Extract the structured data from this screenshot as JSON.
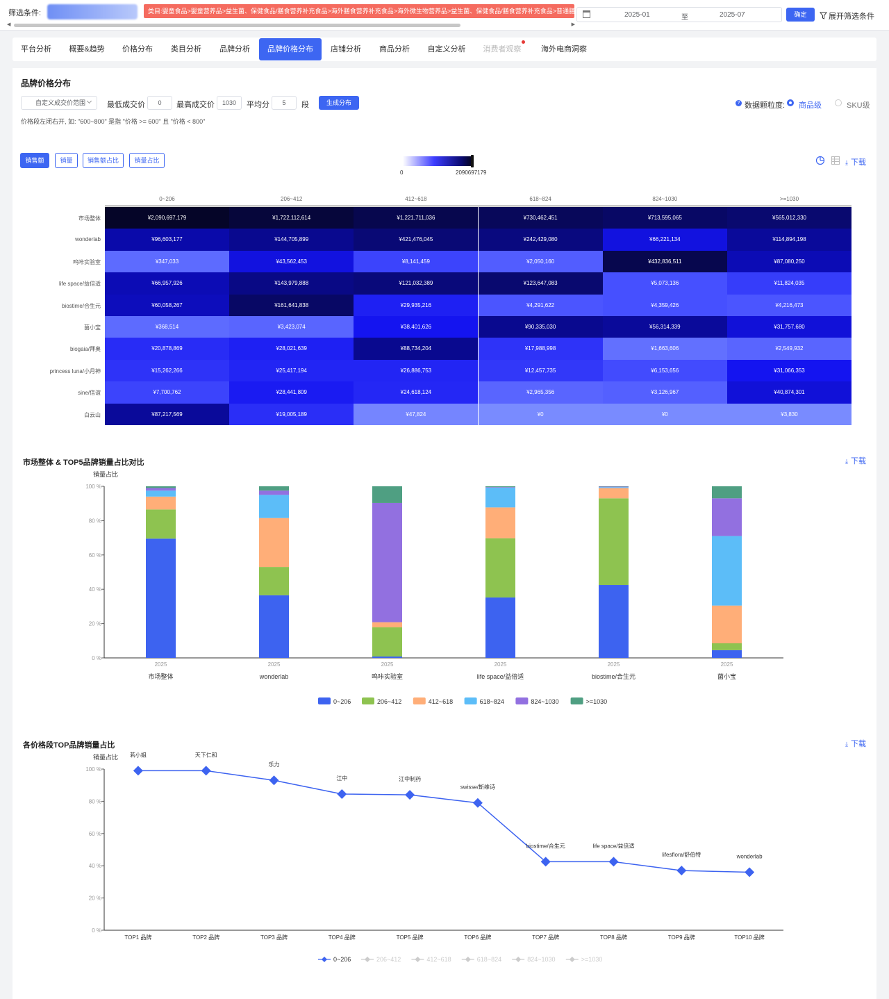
{
  "topbar": {
    "filter_label": "筛选条件:",
    "category_path": "类目:婴童食品>婴童营养品>益生菌、保健食品/膳食营养补充食品>海外膳食营养补充食品>海外微生物营养品>益生菌、保健食品/膳食营养补充食品>普通膳食营养",
    "date_start": "2025-01",
    "date_sep": "至",
    "date_end": "2025-07",
    "ok_label": "确定",
    "expand_label": "展开筛选条件"
  },
  "tabs": [
    {
      "label": "平台分析",
      "active": false,
      "disabled": false
    },
    {
      "label": "概要&趋势",
      "active": false,
      "disabled": false
    },
    {
      "label": "价格分布",
      "active": false,
      "disabled": false
    },
    {
      "label": "类目分析",
      "active": false,
      "disabled": false
    },
    {
      "label": "品牌分析",
      "active": false,
      "disabled": false
    },
    {
      "label": "品牌价格分布",
      "active": true,
      "disabled": false
    },
    {
      "label": "店铺分析",
      "active": false,
      "disabled": false
    },
    {
      "label": "商品分析",
      "active": false,
      "disabled": false
    },
    {
      "label": "自定义分析",
      "active": false,
      "disabled": false
    },
    {
      "label": "消费者观察",
      "active": false,
      "disabled": true
    },
    {
      "label": "海外电商洞察",
      "active": false,
      "disabled": false
    }
  ],
  "section1": {
    "title": "品牌价格分布",
    "range_select": "自定义成交价范围",
    "min_label": "最低成交价",
    "min_value": "0",
    "max_label": "最高成交价",
    "max_value": "1030",
    "avg_label": "平均分",
    "avg_value": "5",
    "seg_label": "段",
    "generate_label": "生成分布",
    "note": "价格段左闭右开, 如: \"600~800\" 是指 \"价格 >= 600\" 且 \"价格 < 800\"",
    "granularity_label": "数据颗粒度:",
    "granularity_options": [
      "商品级",
      "SKU级"
    ],
    "granularity_selected": "商品级",
    "metric_buttons": [
      "销售额",
      "销量",
      "销售额占比",
      "销量占比"
    ],
    "metric_active": "销售额",
    "colorbar_min": "0",
    "colorbar_max": "2090697179",
    "download_label": "下载"
  },
  "heatmap": {
    "columns": [
      "0~206",
      "206~412",
      "412~618",
      "618~824",
      "824~1030",
      ">=1030"
    ],
    "rows": [
      {
        "name": "市场整体",
        "values": [
          "¥2,090,697,179",
          "¥1,722,112,614",
          "¥1,221,711,036",
          "¥730,462,451",
          "¥713,595,065",
          "¥565,012,330"
        ],
        "shades": [
          0.98,
          0.95,
          0.92,
          0.9,
          0.88,
          0.86
        ]
      },
      {
        "name": "wonderlab",
        "values": [
          "¥96,603,177",
          "¥144,705,899",
          "¥421,476,045",
          "¥242,429,080",
          "¥66,221,134",
          "¥114,894,198"
        ],
        "shades": [
          0.75,
          0.8,
          0.85,
          0.83,
          0.6,
          0.78
        ]
      },
      {
        "name": "呜咔实验室",
        "values": [
          "¥347,033",
          "¥43,562,453",
          "¥8,141,459",
          "¥2,050,160",
          "¥432,836,511",
          "¥87,080,250"
        ],
        "shades": [
          0.2,
          0.6,
          0.35,
          0.25,
          0.92,
          0.72
        ]
      },
      {
        "name": "life space/益倍适",
        "values": [
          "¥66,957,926",
          "¥143,979,888",
          "¥121,032,389",
          "¥123,647,083",
          "¥5,073,136",
          "¥11,824,035"
        ],
        "shades": [
          0.72,
          0.82,
          0.84,
          0.86,
          0.3,
          0.38
        ]
      },
      {
        "name": "biostime/合生元",
        "values": [
          "¥60,058,267",
          "¥161,641,838",
          "¥29,935,216",
          "¥4,291,622",
          "¥4,359,426",
          "¥4,216,473"
        ],
        "shades": [
          0.7,
          0.88,
          0.5,
          0.28,
          0.3,
          0.28
        ]
      },
      {
        "name": "菌小宝",
        "values": [
          "¥368,514",
          "¥3,423,074",
          "¥38,401,626",
          "¥90,335,030",
          "¥56,314,339",
          "¥31,757,680"
        ],
        "shades": [
          0.2,
          0.22,
          0.55,
          0.8,
          0.78,
          0.62
        ]
      },
      {
        "name": "biogaia/拜奥",
        "values": [
          "¥20,878,869",
          "¥28,021,639",
          "¥88,734,204",
          "¥17,988,998",
          "¥1,663,606",
          "¥2,549,932"
        ],
        "shades": [
          0.45,
          0.5,
          0.8,
          0.42,
          0.18,
          0.22
        ]
      },
      {
        "name": "princess luna/小月神",
        "values": [
          "¥15,262,266",
          "¥25,417,194",
          "¥26,886,753",
          "¥12,457,735",
          "¥6,153,656",
          "¥31,066,353"
        ],
        "shades": [
          0.42,
          0.48,
          0.48,
          0.4,
          0.32,
          0.55
        ]
      },
      {
        "name": "sine/信谊",
        "values": [
          "¥7,700,762",
          "¥28,441,809",
          "¥24,618,124",
          "¥2,965,356",
          "¥3,126,967",
          "¥40,874,301"
        ],
        "shades": [
          0.35,
          0.52,
          0.47,
          0.22,
          0.24,
          0.62
        ]
      },
      {
        "name": "白云山",
        "values": [
          "¥87,217,569",
          "¥19,005,189",
          "¥47,824",
          "¥0",
          "¥0",
          "¥3,830"
        ],
        "shades": [
          0.78,
          0.44,
          0.1,
          0.08,
          0.08,
          0.08
        ]
      }
    ]
  },
  "chart_data": [
    {
      "type": "bar",
      "title": "市场整体 & TOP5品牌销量占比对比",
      "ylabel": "销量占比",
      "ylim": [
        0,
        100
      ],
      "yticks": [
        "0 %",
        "20 %",
        "40 %",
        "60 %",
        "80 %",
        "100 %"
      ],
      "x_sub": "2025",
      "categories": [
        "市场整体",
        "wonderlab",
        "呜咔实验室",
        "life space/益倍适",
        "biostime/合生元",
        "菌小宝"
      ],
      "stacked": true,
      "series": [
        {
          "name": "0~206",
          "values": [
            69.5,
            36.5,
            0.8,
            35.2,
            42.5,
            4.5
          ]
        },
        {
          "name": "206~412",
          "values": [
            17.0,
            16.5,
            17.0,
            34.5,
            50.5,
            4.0
          ]
        },
        {
          "name": "412~618",
          "values": [
            7.5,
            28.5,
            3.0,
            18.0,
            6.0,
            22.0
          ]
        },
        {
          "name": "618~824",
          "values": [
            3.5,
            13.5,
            0.0,
            11.5,
            0.5,
            40.5
          ]
        },
        {
          "name": "824~1030",
          "values": [
            1.5,
            2.5,
            69.5,
            0.3,
            0.3,
            22.0
          ]
        },
        {
          "name": ">=1030",
          "values": [
            1.0,
            2.5,
            9.7,
            0.5,
            0.2,
            7.0
          ]
        }
      ],
      "colors": [
        "#3d63f0",
        "#8ec350",
        "#ffae78",
        "#5cbdf8",
        "#9270e0",
        "#4f9f82"
      ],
      "legend_position": "bottom",
      "download_label": "下载"
    },
    {
      "type": "line",
      "title": "各价格段TOP品牌销量占比",
      "ylabel": "销量占比",
      "ylim": [
        0,
        100
      ],
      "yticks": [
        "0 %",
        "20 %",
        "40 %",
        "60 %",
        "80 %",
        "100 %"
      ],
      "categories": [
        "TOP1 品牌",
        "TOP2 品牌",
        "TOP3 品牌",
        "TOP4 品牌",
        "TOP5 品牌",
        "TOP6 品牌",
        "TOP7 品牌",
        "TOP8 品牌",
        "TOP9 品牌",
        "TOP10 品牌"
      ],
      "point_labels": [
        "若小姐",
        "天下仁和",
        "乐力",
        "江中",
        "江中制药",
        "swisse/斯维诗",
        "biostime/合生元",
        "life space/益倍适",
        "lifesflora/舒伯特",
        "wonderlab"
      ],
      "values": [
        99,
        99,
        93,
        84.5,
        84,
        79,
        42.5,
        42.5,
        37,
        36
      ],
      "legend": [
        "0~206",
        "206~412",
        "412~618",
        "618~824",
        "824~1030",
        ">=1030"
      ],
      "legend_active": "0~206",
      "color": "#3d63f0",
      "legend_position": "bottom",
      "download_label": "下载"
    }
  ]
}
